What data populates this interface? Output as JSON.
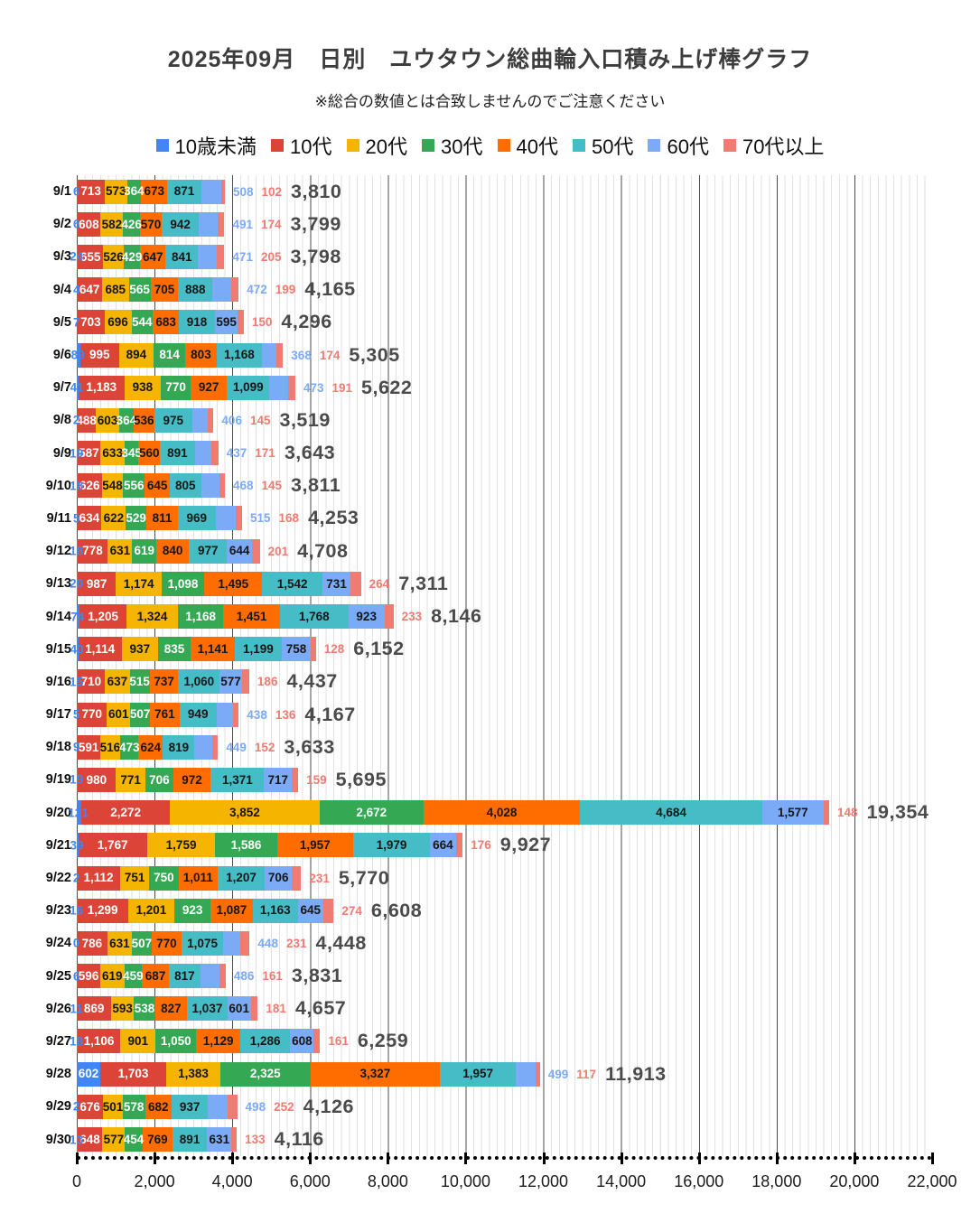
{
  "title": "2025年09月　日別　ユウタウン総曲輪入口積み上げ棒グラフ",
  "subtitle": "※総合の数値とは合致しませんのでご注意ください",
  "series": [
    {
      "name": "10歳未満",
      "color": "#4285f4",
      "label_style": "white"
    },
    {
      "name": "10代",
      "color": "#db4437",
      "label_style": "white"
    },
    {
      "name": "20代",
      "color": "#f4b400",
      "label_style": "dark"
    },
    {
      "name": "30代",
      "color": "#34a853",
      "label_style": "white"
    },
    {
      "name": "40代",
      "color": "#ff6d01",
      "label_style": "dark"
    },
    {
      "name": "50代",
      "color": "#46bdc6",
      "label_style": "dark"
    },
    {
      "name": "60代",
      "color": "#7baaf7",
      "label_style": "dark"
    },
    {
      "name": "70代以上",
      "color": "#f07b72",
      "label_style": "dark"
    }
  ],
  "chart_data": {
    "type": "bar",
    "stacked": true,
    "orientation": "horizontal",
    "title": "2025年09月　日別　ユウタウン総曲輪入口積み上げ棒グラフ",
    "legend_position": "top",
    "grid": true,
    "xlim": [
      0,
      22000
    ],
    "series_names": [
      "10歳未満",
      "10代",
      "20代",
      "30代",
      "40代",
      "50代",
      "60代",
      "70代以上"
    ],
    "categories": [
      "9/1",
      "9/2",
      "9/3",
      "9/4",
      "9/5",
      "9/6",
      "9/7",
      "9/8",
      "9/9",
      "9/10",
      "9/11",
      "9/12",
      "9/13",
      "9/14",
      "9/15",
      "9/16",
      "9/17",
      "9/18",
      "9/19",
      "9/20",
      "9/21",
      "9/22",
      "9/23",
      "9/24",
      "9/25",
      "9/26",
      "9/27",
      "9/28",
      "9/29",
      "9/30"
    ],
    "rows": [
      {
        "date": "9/1",
        "values": [
          6,
          713,
          573,
          364,
          673,
          871,
          508,
          102
        ],
        "total": 3810
      },
      {
        "date": "9/2",
        "values": [
          6,
          608,
          582,
          426,
          570,
          942,
          491,
          174
        ],
        "total": 3799
      },
      {
        "date": "9/3",
        "values": [
          24,
          655,
          526,
          429,
          647,
          841,
          471,
          205
        ],
        "total": 3798
      },
      {
        "date": "9/4",
        "values": [
          4,
          647,
          685,
          565,
          705,
          888,
          472,
          199
        ],
        "total": 4165
      },
      {
        "date": "9/5",
        "values": [
          7,
          703,
          696,
          544,
          683,
          918,
          595,
          150
        ],
        "total": 4296
      },
      {
        "date": "9/6",
        "values": [
          89,
          995,
          894,
          814,
          803,
          1168,
          368,
          174
        ],
        "total": 5305
      },
      {
        "date": "9/7",
        "values": [
          41,
          1183,
          938,
          770,
          927,
          1099,
          473,
          191
        ],
        "total": 5622
      },
      {
        "date": "9/8",
        "values": [
          2,
          488,
          603,
          364,
          536,
          975,
          406,
          145
        ],
        "total": 3519
      },
      {
        "date": "9/9",
        "values": [
          19,
          587,
          633,
          345,
          560,
          891,
          437,
          171
        ],
        "total": 3643
      },
      {
        "date": "9/10",
        "values": [
          18,
          626,
          548,
          556,
          645,
          805,
          468,
          145
        ],
        "total": 3811
      },
      {
        "date": "9/11",
        "values": [
          5,
          634,
          622,
          529,
          811,
          969,
          515,
          168
        ],
        "total": 4253
      },
      {
        "date": "9/12",
        "values": [
          18,
          778,
          631,
          619,
          840,
          977,
          644,
          201
        ],
        "total": 4708
      },
      {
        "date": "9/13",
        "values": [
          20,
          987,
          1174,
          1098,
          1495,
          1542,
          731,
          264
        ],
        "total": 7311
      },
      {
        "date": "9/14",
        "values": [
          74,
          1205,
          1324,
          1168,
          1451,
          1768,
          923,
          233
        ],
        "total": 8146
      },
      {
        "date": "9/15",
        "values": [
          40,
          1114,
          937,
          835,
          1141,
          1199,
          758,
          128
        ],
        "total": 6152
      },
      {
        "date": "9/16",
        "values": [
          15,
          710,
          637,
          515,
          737,
          1060,
          577,
          186
        ],
        "total": 4437
      },
      {
        "date": "9/17",
        "values": [
          5,
          770,
          601,
          507,
          761,
          949,
          438,
          136
        ],
        "total": 4167
      },
      {
        "date": "9/18",
        "values": [
          9,
          591,
          516,
          473,
          624,
          819,
          449,
          152
        ],
        "total": 3633
      },
      {
        "date": "9/19",
        "values": [
          19,
          980,
          771,
          706,
          972,
          1371,
          717,
          159
        ],
        "total": 5695
      },
      {
        "date": "9/20",
        "values": [
          121,
          2272,
          3852,
          2672,
          4028,
          4684,
          1577,
          148
        ],
        "total": 19354
      },
      {
        "date": "9/21",
        "values": [
          39,
          1767,
          1759,
          1586,
          1957,
          1979,
          664,
          176
        ],
        "total": 9927
      },
      {
        "date": "9/22",
        "values": [
          2,
          1112,
          751,
          750,
          1011,
          1207,
          706,
          231
        ],
        "total": 5770
      },
      {
        "date": "9/23",
        "values": [
          16,
          1299,
          1201,
          923,
          1087,
          1163,
          645,
          274
        ],
        "total": 6608
      },
      {
        "date": "9/24",
        "values": [
          0,
          786,
          631,
          507,
          770,
          1075,
          448,
          231
        ],
        "total": 4448
      },
      {
        "date": "9/25",
        "values": [
          6,
          596,
          619,
          459,
          687,
          817,
          486,
          161
        ],
        "total": 3831
      },
      {
        "date": "9/26",
        "values": [
          11,
          869,
          593,
          538,
          827,
          1037,
          601,
          181
        ],
        "total": 4657
      },
      {
        "date": "9/27",
        "values": [
          18,
          1106,
          901,
          1050,
          1129,
          1286,
          608,
          161
        ],
        "total": 6259
      },
      {
        "date": "9/28",
        "values": [
          602,
          1703,
          1383,
          2325,
          3327,
          1957,
          499,
          117
        ],
        "total": 11913
      },
      {
        "date": "9/29",
        "values": [
          2,
          676,
          501,
          578,
          682,
          937,
          498,
          252
        ],
        "total": 4126
      },
      {
        "date": "9/30",
        "values": [
          13,
          648,
          577,
          454,
          769,
          891,
          631,
          133
        ],
        "total": 4116
      }
    ]
  },
  "axis": {
    "tick_labels": [
      "0",
      "2,000",
      "4,000",
      "6,000",
      "8,000",
      "10,000",
      "12,000",
      "14,000",
      "16,000",
      "18,000",
      "20,000",
      "22,000"
    ],
    "tick_values": [
      0,
      2000,
      4000,
      6000,
      8000,
      10000,
      12000,
      14000,
      16000,
      18000,
      20000,
      22000
    ]
  }
}
